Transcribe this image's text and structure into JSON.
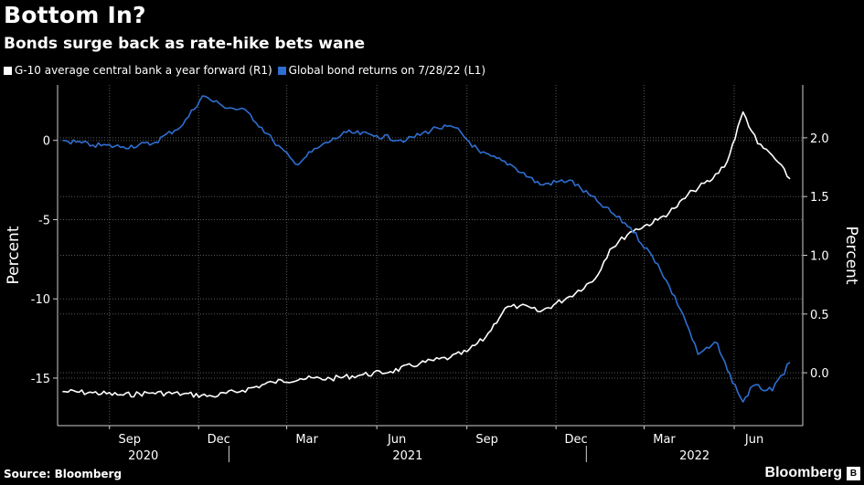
{
  "header": {
    "title": "Bottom In?",
    "subtitle": "Bonds surge back as rate-hike bets wane"
  },
  "footer": {
    "source": "Source: Bloomberg",
    "brand": "Bloomberg",
    "brand_icon": "B"
  },
  "colors": {
    "background": "#000000",
    "white_series": "#ffffff",
    "blue_series": "#2f6ed0",
    "grid": "#5a5a5a"
  },
  "chart_data": {
    "type": "line",
    "grid": true,
    "legend_placement": "top-left",
    "x_month_ticks": [
      "Sep",
      "Dec",
      "Mar",
      "Jun",
      "Sep",
      "Dec",
      "Mar",
      "Jun"
    ],
    "x_year_labels": [
      "2020",
      "2021",
      "2022"
    ],
    "left_axis": {
      "label": "Percent",
      "ticks": [
        "0",
        "-5",
        "-10",
        "-15"
      ],
      "tick_values": [
        0,
        -5,
        -10,
        -15
      ],
      "range": [
        -18,
        3.5
      ]
    },
    "right_axis": {
      "label": "Percent",
      "ticks": [
        "2.0",
        "1.5",
        "1.0",
        "0.5",
        "0.0"
      ],
      "tick_values": [
        2.0,
        1.5,
        1.0,
        0.5,
        0.0
      ],
      "range": [
        -0.45,
        2.45
      ]
    },
    "series": [
      {
        "name": "G-10 average central bank a year forward (R1)",
        "axis": "right",
        "color": "#ffffff",
        "points": [
          [
            "2020-07-15",
            -0.16
          ],
          [
            "2020-08-15",
            -0.17
          ],
          [
            "2020-09-15",
            -0.19
          ],
          [
            "2020-10-15",
            -0.17
          ],
          [
            "2020-11-15",
            -0.18
          ],
          [
            "2020-12-15",
            -0.2
          ],
          [
            "2021-01-15",
            -0.15
          ],
          [
            "2021-02-15",
            -0.08
          ],
          [
            "2021-03-15",
            -0.05
          ],
          [
            "2021-04-15",
            -0.05
          ],
          [
            "2021-05-15",
            -0.02
          ],
          [
            "2021-06-15",
            0.01
          ],
          [
            "2021-07-15",
            0.08
          ],
          [
            "2021-08-15",
            0.13
          ],
          [
            "2021-09-01",
            0.18
          ],
          [
            "2021-09-20",
            0.3
          ],
          [
            "2021-10-10",
            0.55
          ],
          [
            "2021-10-25",
            0.57
          ],
          [
            "2021-11-15",
            0.52
          ],
          [
            "2021-12-15",
            0.65
          ],
          [
            "2022-01-10",
            0.8
          ],
          [
            "2022-01-25",
            1.05
          ],
          [
            "2022-02-15",
            1.2
          ],
          [
            "2022-03-15",
            1.3
          ],
          [
            "2022-04-01",
            1.4
          ],
          [
            "2022-04-20",
            1.55
          ],
          [
            "2022-05-10",
            1.65
          ],
          [
            "2022-05-25",
            1.8
          ],
          [
            "2022-06-10",
            2.22
          ],
          [
            "2022-06-25",
            1.95
          ],
          [
            "2022-07-10",
            1.85
          ],
          [
            "2022-07-28",
            1.65
          ]
        ]
      },
      {
        "name": "Global bond returns on 7/28/22 (L1)",
        "axis": "left",
        "color": "#2f6ed0",
        "points": [
          [
            "2020-07-15",
            0.0
          ],
          [
            "2020-08-15",
            -0.3
          ],
          [
            "2020-09-15",
            -0.4
          ],
          [
            "2020-10-15",
            -0.2
          ],
          [
            "2020-11-15",
            1.0
          ],
          [
            "2020-12-05",
            2.8
          ],
          [
            "2020-12-25",
            2.2
          ],
          [
            "2021-01-20",
            1.8
          ],
          [
            "2021-02-15",
            0.0
          ],
          [
            "2021-03-10",
            -1.5
          ],
          [
            "2021-04-01",
            -0.5
          ],
          [
            "2021-05-01",
            0.5
          ],
          [
            "2021-06-01",
            0.3
          ],
          [
            "2021-07-01",
            0.0
          ],
          [
            "2021-08-01",
            0.8
          ],
          [
            "2021-08-20",
            0.8
          ],
          [
            "2021-09-15",
            -0.8
          ],
          [
            "2021-10-15",
            -1.5
          ],
          [
            "2021-11-15",
            -2.8
          ],
          [
            "2021-12-15",
            -2.5
          ],
          [
            "2022-01-15",
            -4.0
          ],
          [
            "2022-02-15",
            -5.5
          ],
          [
            "2022-03-15",
            -7.8
          ],
          [
            "2022-04-10",
            -11.0
          ],
          [
            "2022-04-25",
            -13.5
          ],
          [
            "2022-05-15",
            -12.8
          ],
          [
            "2022-05-25",
            -14.5
          ],
          [
            "2022-06-10",
            -16.5
          ],
          [
            "2022-06-20",
            -15.5
          ],
          [
            "2022-07-10",
            -15.8
          ],
          [
            "2022-07-28",
            -14.0
          ]
        ]
      }
    ]
  }
}
